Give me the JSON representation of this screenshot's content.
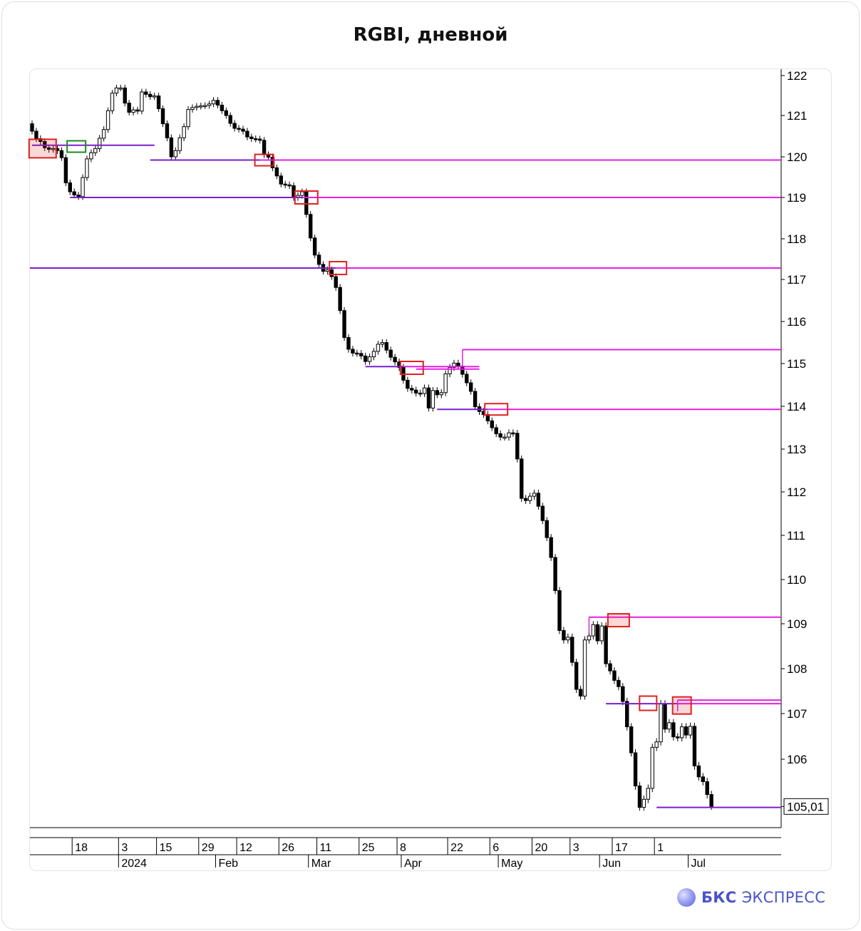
{
  "title": "RGBI, дневной",
  "logo": {
    "brand": "БКС",
    "product": "ЭКСПРЕСС"
  },
  "colors": {
    "bull_body": "#ffffff",
    "bear_body": "#000000",
    "support_line": "#7a1fd0",
    "resistance_line": "#e61ee6",
    "box_red": "#e02020",
    "box_green": "#1a8a1a"
  },
  "chart_data": {
    "type": "candlestick",
    "title": "RGBI, дневной",
    "y_scale": "linear",
    "ylim": [
      104.45,
      122.22
    ],
    "y_ticks": [
      "122",
      "121",
      "120",
      "119",
      "118",
      "117",
      "116",
      "115",
      "114",
      "113",
      "112",
      "111",
      "110",
      "109",
      "108",
      "107",
      "106",
      "105,01"
    ],
    "last_price": "105,01",
    "x_ticks": [
      "18",
      "3",
      "15",
      "29",
      "12",
      "26",
      "11",
      "25",
      "8",
      "22",
      "6",
      "20",
      "3",
      "17",
      "1"
    ],
    "month_labels": [
      "2024",
      "Feb",
      "Mar",
      "Apr",
      "May",
      "Jun",
      "Jul"
    ],
    "closes": [
      120.62,
      120.44,
      120.37,
      120.22,
      120.18,
      120.2,
      120.15,
      119.98,
      119.36,
      119.14,
      119.06,
      119.02,
      119.49,
      119.95,
      120.1,
      120.2,
      120.45,
      120.66,
      121.12,
      121.56,
      121.69,
      121.69,
      121.31,
      121.08,
      121.14,
      121.11,
      121.59,
      121.53,
      121.47,
      121.49,
      121.17,
      120.8,
      120.46,
      120.0,
      120.15,
      120.46,
      120.73,
      121.15,
      121.2,
      121.23,
      121.24,
      121.25,
      121.29,
      121.38,
      121.26,
      121.12,
      121.0,
      120.81,
      120.69,
      120.67,
      120.62,
      120.48,
      120.44,
      120.43,
      120.4,
      120.05,
      119.99,
      119.73,
      119.53,
      119.33,
      119.31,
      119.29,
      119.0,
      119.05,
      119.14,
      118.59,
      118.02,
      117.6,
      117.37,
      117.2,
      117.24,
      117.07,
      116.81,
      116.26,
      115.62,
      115.34,
      115.25,
      115.24,
      115.18,
      115.05,
      115.16,
      115.29,
      115.46,
      115.5,
      115.32,
      115.15,
      115.04,
      114.91,
      114.61,
      114.42,
      114.38,
      114.31,
      114.3,
      114.43,
      113.96,
      114.37,
      114.27,
      114.32,
      114.76,
      114.91,
      115.01,
      114.94,
      114.75,
      114.55,
      114.35,
      113.99,
      113.88,
      113.81,
      113.66,
      113.5,
      113.36,
      113.28,
      113.28,
      113.38,
      113.37,
      112.77,
      111.85,
      111.8,
      111.9,
      111.97,
      111.67,
      111.34,
      110.95,
      110.5,
      109.75,
      108.85,
      108.64,
      108.7,
      108.14,
      107.54,
      107.39,
      108.64,
      108.73,
      108.98,
      108.62,
      108.95,
      108.11,
      107.95,
      107.74,
      107.6,
      107.27,
      106.71,
      106.14,
      105.44,
      104.99,
      105.16,
      105.39,
      106.26,
      106.38,
      107.22,
      106.66,
      106.8,
      106.49,
      106.47,
      106.71,
      106.53,
      106.72,
      105.86,
      105.63,
      105.53,
      105.26,
      105.01
    ],
    "levels": [
      {
        "price": 120.28,
        "kind": "support"
      },
      {
        "price": 119.92,
        "kind": "support-to-resistance"
      },
      {
        "price": 119.0,
        "kind": "support-to-resistance"
      },
      {
        "price": 117.28,
        "kind": "support-to-resistance"
      },
      {
        "price": 115.33,
        "kind": "resistance"
      },
      {
        "price": 114.93,
        "kind": "support-to-resistance"
      },
      {
        "price": 114.87,
        "kind": "resistance"
      },
      {
        "price": 113.93,
        "kind": "support-to-resistance"
      },
      {
        "price": 109.15,
        "kind": "resistance"
      },
      {
        "price": 107.3,
        "kind": "resistance"
      },
      {
        "price": 107.22,
        "kind": "support-to-resistance"
      },
      {
        "price": 104.99,
        "kind": "support"
      }
    ],
    "grid": false,
    "legend": "none"
  }
}
